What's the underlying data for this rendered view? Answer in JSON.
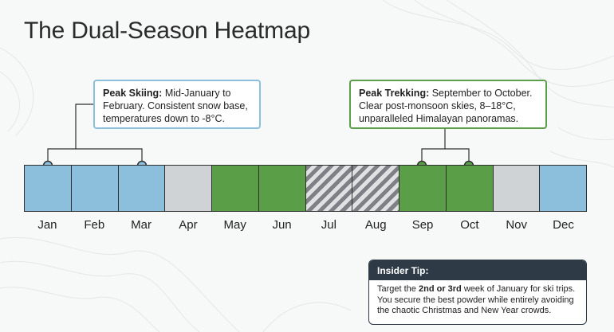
{
  "title": "The Dual-Season Heatmap",
  "callouts": {
    "skiing": {
      "heading": "Peak Skiing:",
      "text": " Mid-January to February. Consistent snow base, temperatures down to -8°C."
    },
    "trekking": {
      "heading": "Peak Trekking:",
      "text": " September to October. Clear post-monsoon skies, 8–18°C, unparalleled Himalayan panoramas."
    }
  },
  "months": [
    {
      "label": "Jan",
      "season": "ski"
    },
    {
      "label": "Feb",
      "season": "ski"
    },
    {
      "label": "Mar",
      "season": "ski"
    },
    {
      "label": "Apr",
      "season": "offpeak"
    },
    {
      "label": "May",
      "season": "trek"
    },
    {
      "label": "Jun",
      "season": "trek"
    },
    {
      "label": "Jul",
      "season": "monsoon"
    },
    {
      "label": "Aug",
      "season": "monsoon"
    },
    {
      "label": "Sep",
      "season": "trek"
    },
    {
      "label": "Oct",
      "season": "trek"
    },
    {
      "label": "Nov",
      "season": "offpeak"
    },
    {
      "label": "Dec",
      "season": "ski"
    }
  ],
  "colors": {
    "ski": "#8cbfdc",
    "trek": "#5b9e48",
    "offpeak": "#d0d3d6",
    "monsoon_hatch": "#7d8186",
    "tip_header": "#2e3b47"
  },
  "insider_tip": {
    "heading": "Insider Tip:",
    "text_before": "Target the ",
    "emphasis": "2nd or 3rd",
    "text_after": " week of January for ski trips. You secure the best powder while entirely avoiding the chaotic Christmas and New Year crowds."
  }
}
